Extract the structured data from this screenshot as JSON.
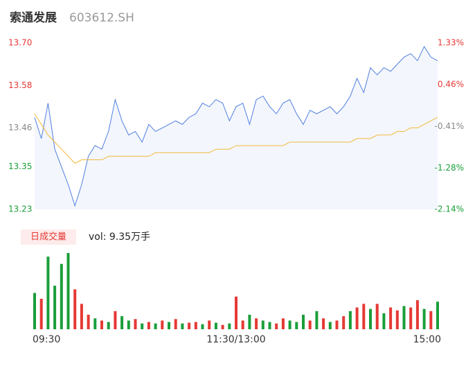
{
  "chart_data": {
    "type": "intraday",
    "title": "索通发展",
    "subtitle": "603612.SH",
    "categories": [
      "09:30",
      null,
      null,
      null,
      null,
      null,
      null,
      null,
      null,
      null,
      null,
      null,
      null,
      null,
      null,
      null,
      null,
      null,
      null,
      null,
      null,
      null,
      null,
      null,
      null,
      null,
      null,
      null,
      null,
      null,
      "11:30/13:00",
      null,
      null,
      null,
      null,
      null,
      null,
      null,
      null,
      null,
      null,
      null,
      null,
      null,
      null,
      null,
      null,
      null,
      null,
      null,
      null,
      null,
      null,
      null,
      null,
      null,
      null,
      null,
      null,
      null,
      "15:00"
    ],
    "series": [
      {
        "name": "price",
        "color": "#4f7fe0",
        "values": [
          13.49,
          13.43,
          13.53,
          13.4,
          13.35,
          13.3,
          13.24,
          13.3,
          13.38,
          13.41,
          13.4,
          13.45,
          13.54,
          13.48,
          13.44,
          13.45,
          13.42,
          13.47,
          13.45,
          13.46,
          13.47,
          13.48,
          13.47,
          13.49,
          13.5,
          13.53,
          13.52,
          13.54,
          13.53,
          13.48,
          13.52,
          13.53,
          13.47,
          13.54,
          13.55,
          13.52,
          13.5,
          13.53,
          13.54,
          13.5,
          13.47,
          13.51,
          13.5,
          13.51,
          13.52,
          13.5,
          13.52,
          13.55,
          13.6,
          13.56,
          13.63,
          13.61,
          13.63,
          13.62,
          13.64,
          13.66,
          13.67,
          13.65,
          13.69,
          13.66,
          13.65
        ]
      },
      {
        "name": "average",
        "color": "#f2b93b",
        "values": [
          13.5,
          13.47,
          13.44,
          13.42,
          13.4,
          13.38,
          13.36,
          13.37,
          13.37,
          13.37,
          13.37,
          13.38,
          13.38,
          13.38,
          13.38,
          13.38,
          13.38,
          13.38,
          13.39,
          13.39,
          13.39,
          13.39,
          13.39,
          13.39,
          13.39,
          13.39,
          13.39,
          13.4,
          13.4,
          13.4,
          13.41,
          13.41,
          13.41,
          13.41,
          13.41,
          13.41,
          13.41,
          13.41,
          13.42,
          13.42,
          13.42,
          13.42,
          13.42,
          13.42,
          13.42,
          13.42,
          13.42,
          13.42,
          13.43,
          13.43,
          13.43,
          13.44,
          13.44,
          13.44,
          13.45,
          13.45,
          13.46,
          13.46,
          13.47,
          13.48,
          13.49
        ]
      }
    ],
    "ylim": [
      13.23,
      13.7
    ],
    "yticks": [
      {
        "value": 13.7,
        "label": "13.70"
      },
      13.58,
      13.46,
      13.35,
      13.23
    ],
    "y2lim": [
      -2.14,
      1.33
    ],
    "y2ticks": [
      {
        "value": 1.33,
        "label": "1.33%"
      },
      {
        "value": 0.46,
        "label": "0.46%"
      },
      {
        "value": -0.41,
        "label": "-0.41%"
      },
      {
        "value": -1.28,
        "label": "-1.28%"
      },
      {
        "value": -2.14,
        "label": "-2.14%"
      }
    ],
    "ytick_colors": [
      "#e53935",
      "#e53935",
      "#888888",
      "#1a9e3a",
      "#1a9e3a"
    ],
    "volume": {
      "label": "日成交量",
      "summary": "vol: 9.35万手",
      "values": [
        50,
        42,
        100,
        60,
        90,
        105,
        55,
        35,
        20,
        15,
        12,
        10,
        25,
        18,
        12,
        14,
        8,
        10,
        8,
        12,
        10,
        14,
        8,
        9,
        10,
        7,
        12,
        9,
        6,
        8,
        45,
        12,
        20,
        15,
        12,
        10,
        8,
        15,
        12,
        10,
        20,
        12,
        25,
        15,
        10,
        12,
        18,
        25,
        30,
        35,
        28,
        35,
        22,
        30,
        26,
        32,
        30,
        40,
        28,
        25,
        38
      ],
      "colors": [
        "#1a9e3a",
        "#e53935",
        "#1a9e3a",
        "#1a9e3a",
        "#1a9e3a",
        "#1a9e3a",
        "#e53935",
        "#e53935",
        "#e53935",
        "#1a9e3a",
        "#e53935",
        "#1a9e3a",
        "#e53935",
        "#1a9e3a",
        "#1a9e3a",
        "#e53935",
        "#1a9e3a",
        "#e53935",
        "#1a9e3a",
        "#e53935",
        "#1a9e3a",
        "#e53935",
        "#1a9e3a",
        "#e53935",
        "#e53935",
        "#1a9e3a",
        "#e53935",
        "#1a9e3a",
        "#e53935",
        "#1a9e3a",
        "#e53935",
        "#e53935",
        "#1a9e3a",
        "#e53935",
        "#1a9e3a",
        "#1a9e3a",
        "#e53935",
        "#e53935",
        "#1a9e3a",
        "#1a9e3a",
        "#1a9e3a",
        "#e53935",
        "#1a9e3a",
        "#e53935",
        "#1a9e3a",
        "#e53935",
        "#e53935",
        "#1a9e3a",
        "#e53935",
        "#e53935",
        "#1a9e3a",
        "#e53935",
        "#1a9e3a",
        "#e53935",
        "#e53935",
        "#1a9e3a",
        "#e53935",
        "#e53935",
        "#1a9e3a",
        "#e53935",
        "#1a9e3a"
      ]
    }
  }
}
